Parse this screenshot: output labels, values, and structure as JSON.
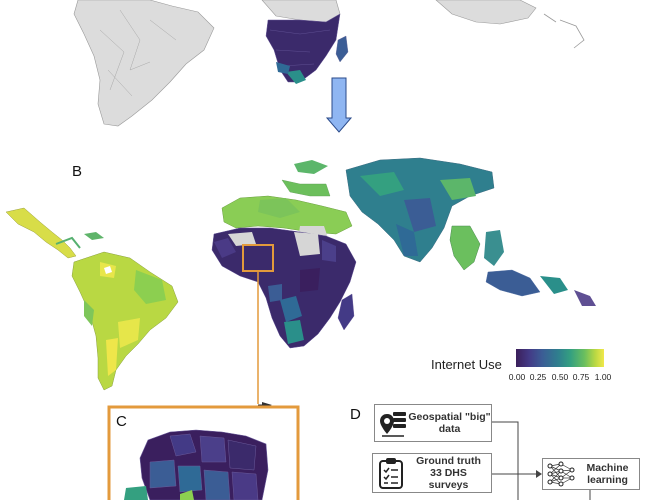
{
  "panels": {
    "b": "B",
    "c": "C",
    "d": "D"
  },
  "legend": {
    "title": "Internet Use",
    "ticks": [
      "0.00",
      "0.25",
      "0.50",
      "0.75",
      "1.00"
    ],
    "range": [
      0,
      1
    ]
  },
  "flow": {
    "box1_line1": "Geospatial \"big\"",
    "box1_line2": "data",
    "box2_line1": "Ground truth",
    "box2_line2": "33 DHS",
    "box2_line3": "surveys",
    "box3_line1": "Machine",
    "box3_line2": "learning"
  },
  "colors": {
    "arrow_fill": "#8fb6f2",
    "inset_frame": "#e39a3c",
    "nodata": "#d9d9d9"
  },
  "icons": [
    "down-arrow-icon",
    "map-pin-database-icon",
    "clipboard-checklist-icon",
    "neural-network-icon"
  ]
}
